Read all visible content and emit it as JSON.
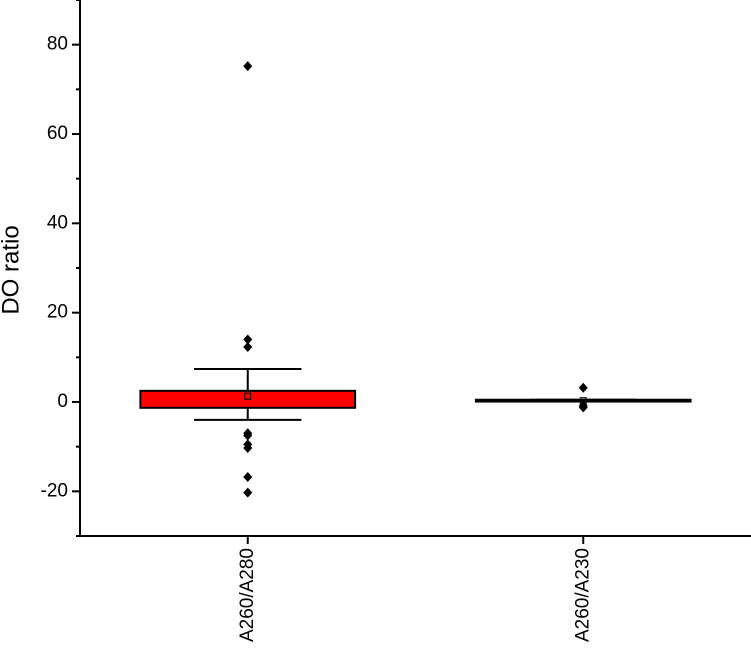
{
  "chart_data": {
    "type": "box",
    "y_label": "DO ratio",
    "categories": [
      "A260/A280",
      "A260/A230"
    ],
    "colors": [
      "#ff0000",
      "#ff0000"
    ],
    "boxes": [
      {
        "q1": -1.3,
        "q3": 2.5,
        "whisker_low": -4,
        "whisker_high": 7.4,
        "mean": 1.3,
        "outliers": [
          75.2,
          14,
          12.3,
          -7,
          -7.5,
          -9.5,
          -10.3,
          -16.8,
          -20.3
        ]
      },
      {
        "q1": 0.1,
        "q3": 0.5,
        "whisker_low": 0.1,
        "whisker_high": 0.5,
        "mean": 0.3,
        "outliers": [
          3.2,
          -0.8,
          -1.2
        ]
      }
    ],
    "ylim": [
      -30,
      90
    ],
    "yticks": [
      -20,
      0,
      20,
      40,
      60,
      80
    ],
    "yminor_ticks": [
      -30,
      -10,
      10,
      30,
      50,
      70,
      90
    ]
  }
}
